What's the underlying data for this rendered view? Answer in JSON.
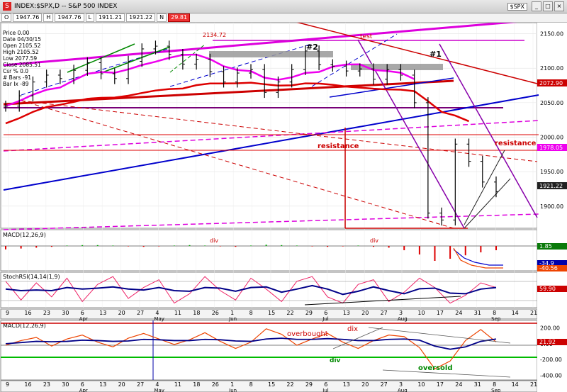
{
  "window": {
    "title": "INDEX:$SPX,D -- S&P 500 INDEX",
    "symbol_box": "$SPX"
  },
  "ohlc_bar": {
    "open": "1947.76",
    "high": "1947.76",
    "low": "1911.21",
    "close": "1921.22",
    "badge": "29.81",
    "o_label": "O",
    "h_label": "H",
    "l_label": "L",
    "n_label": "N"
  },
  "info_panel": [
    "Price  0.00",
    "Date  04/30/15",
    "Open  2105.52",
    "High  2105.52",
    "Low  2077.59",
    "Close  2085.51",
    "Csr %  0.0",
    "# Bars -91",
    "Bar Ix  -89"
  ],
  "price_labels": {
    "close": "1921.22",
    "resistance": "1978.05",
    "upper": "2072.90"
  },
  "annotations": {
    "high": "2134.72",
    "test": "test",
    "two": "#2",
    "one": "#1",
    "resistance_left": "resistance",
    "resistance_right": "resistance",
    "div_macd": "div",
    "div_macd2": "div",
    "overbought": "overbought",
    "dix": "dix",
    "div_green": "div",
    "oversold": "oversold"
  },
  "panel_titles": {
    "macd1": "MACD(12,26,9)",
    "stoch": "StochRSI(14,14(1,9)",
    "macd2": "MACD(12,26,9)"
  },
  "panel_values": {
    "macd1_a": "1.85",
    "macd1_b": "-34.9",
    "macd1_c": "-40.56",
    "stoch": "59.90",
    "macd2": "21.92"
  },
  "chart_data": [
    {
      "type": "line",
      "panel": "price",
      "y_ticks": [
        2150,
        2100,
        2050,
        2000,
        1950,
        1900
      ],
      "ylim": [
        1868,
        2166
      ],
      "x_ticks": [
        "9",
        "16",
        "23",
        "30",
        "6",
        "13",
        "20",
        "27",
        "4",
        "11",
        "18",
        "26",
        "1",
        "8",
        "15",
        "22",
        "29",
        "6",
        "13",
        "20",
        "27",
        "3",
        "10",
        "17",
        "24",
        "31",
        "8",
        "14",
        "21"
      ],
      "months": [
        "Apr",
        "May",
        "Jun",
        "Jul",
        "Aug",
        "Sep"
      ],
      "series": [
        {
          "values": [
            2045,
            2060,
            2080,
            2090,
            2085,
            2097,
            2108,
            2092,
            2085,
            2110,
            2128,
            2132,
            2120,
            2106,
            2113,
            2095,
            2080,
            2093,
            2098,
            2065,
            2080,
            2098,
            2125,
            2105,
            2103,
            2096,
            2099,
            2084,
            2098,
            2090,
            2050,
            1890,
            1880,
            1990,
            1965,
            1935,
            1921
          ]
        }
      ]
    },
    {
      "type": "bar",
      "panel": "macd1",
      "y_ticks": [],
      "values": [
        -8,
        -6,
        -4,
        -2,
        1,
        2,
        2,
        1,
        -1,
        -2,
        -1,
        1,
        2,
        1,
        -1,
        -2,
        1,
        3,
        2,
        1,
        -1,
        -2,
        -1,
        1,
        -2,
        -4,
        -10,
        -20,
        -35,
        -30,
        -22,
        -15,
        -10
      ]
    },
    {
      "type": "line",
      "panel": "stochrsi",
      "y_ticks": [],
      "series": [
        {
          "values": [
            80,
            20,
            75,
            30,
            90,
            15,
            70,
            95,
            25,
            60,
            85,
            10,
            40,
            95,
            50,
            20,
            90,
            55,
            15,
            80,
            95,
            30,
            10,
            70,
            85,
            15,
            45,
            90,
            60,
            10,
            35,
            75,
            60
          ]
        },
        {
          "values": [
            55,
            50,
            52,
            50,
            60,
            55,
            58,
            62,
            55,
            52,
            60,
            50,
            48,
            60,
            58,
            48,
            60,
            62,
            45,
            55,
            66,
            55,
            38,
            48,
            62,
            50,
            40,
            56,
            58,
            42,
            40,
            55,
            60
          ]
        }
      ]
    },
    {
      "type": "line",
      "panel": "macd2",
      "y_ticks": [
        200,
        0,
        -200,
        -400
      ],
      "ylim": [
        -460,
        260
      ],
      "series": [
        {
          "values": [
            -20,
            40,
            80,
            -30,
            60,
            110,
            20,
            -40,
            70,
            130,
            60,
            -10,
            50,
            140,
            30,
            -60,
            20,
            190,
            120,
            -20,
            60,
            130,
            20,
            -60,
            40,
            110,
            90,
            -50,
            -320,
            -220,
            40,
            180,
            21.92
          ]
        },
        {
          "values": [
            0,
            15,
            30,
            25,
            30,
            45,
            40,
            30,
            35,
            55,
            50,
            40,
            40,
            55,
            50,
            35,
            30,
            60,
            70,
            55,
            55,
            65,
            55,
            40,
            40,
            55,
            60,
            45,
            -30,
            -70,
            -40,
            30,
            60
          ]
        }
      ]
    }
  ]
}
